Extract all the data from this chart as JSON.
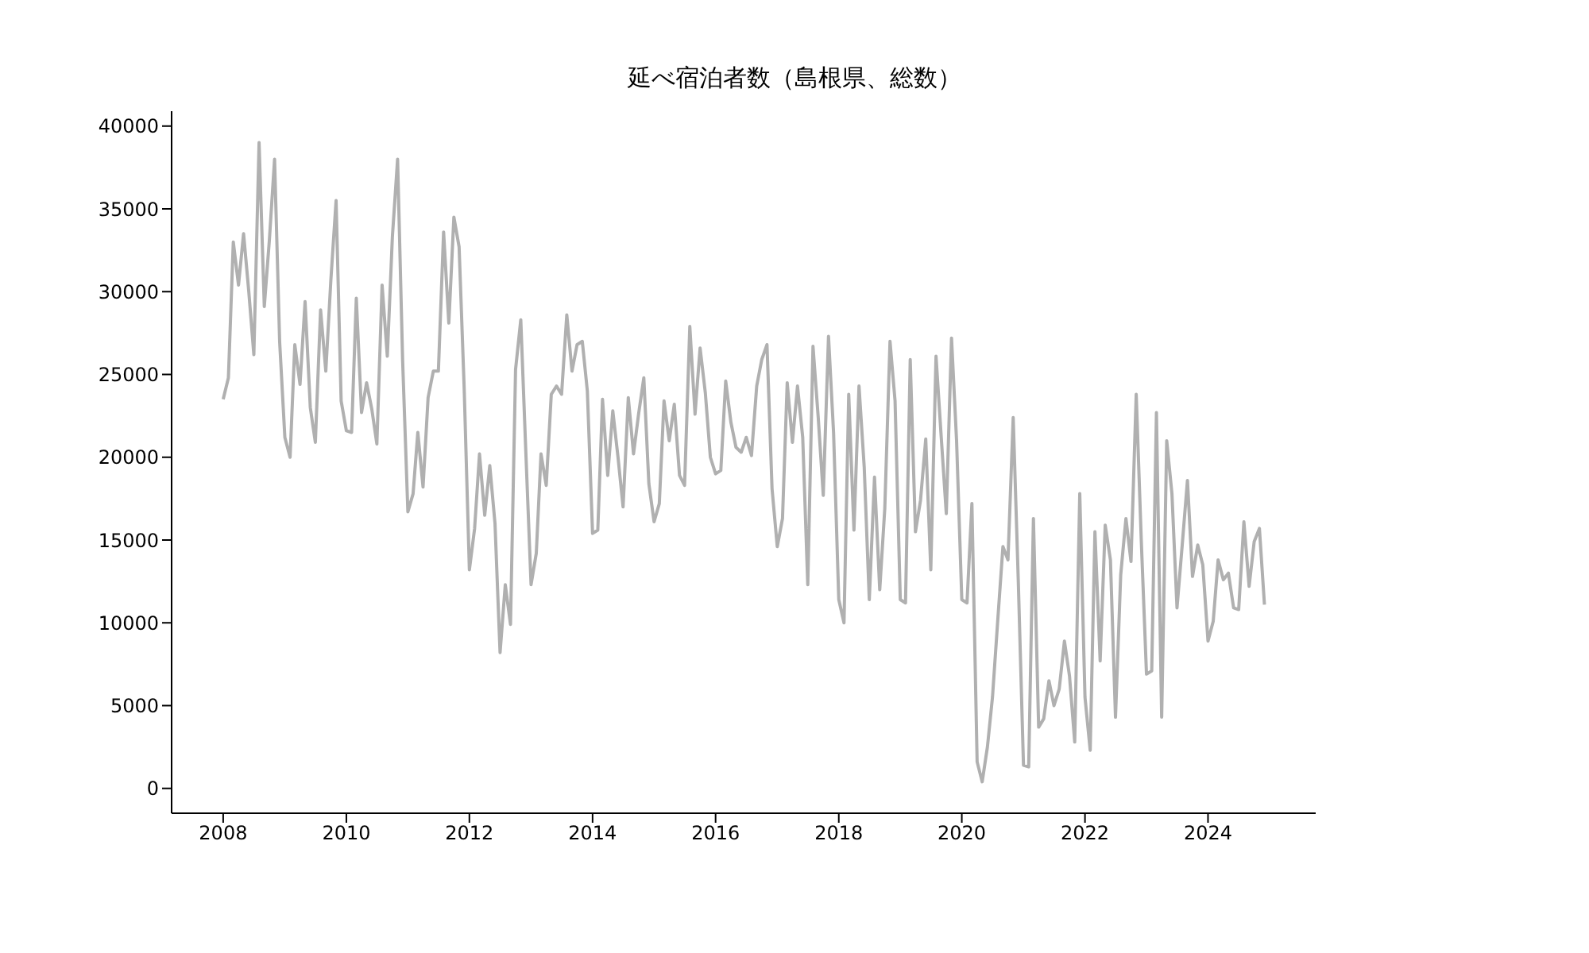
{
  "chart_data": {
    "type": "line",
    "title": "延べ宿泊者数（島根県、総数）",
    "x": [
      "2008-01",
      "2008-02",
      "2008-03",
      "2008-04",
      "2008-05",
      "2008-06",
      "2008-07",
      "2008-08",
      "2008-09",
      "2008-10",
      "2008-11",
      "2008-12",
      "2009-01",
      "2009-02",
      "2009-03",
      "2009-04",
      "2009-05",
      "2009-06",
      "2009-07",
      "2009-08",
      "2009-09",
      "2009-10",
      "2009-11",
      "2009-12",
      "2010-01",
      "2010-02",
      "2010-03",
      "2010-04",
      "2010-05",
      "2010-06",
      "2010-07",
      "2010-08",
      "2010-09",
      "2010-10",
      "2010-11",
      "2010-12",
      "2011-01",
      "2011-02",
      "2011-03",
      "2011-04",
      "2011-05",
      "2011-06",
      "2011-07",
      "2011-08",
      "2011-09",
      "2011-10",
      "2011-11",
      "2011-12",
      "2012-01",
      "2012-02",
      "2012-03",
      "2012-04",
      "2012-05",
      "2012-06",
      "2012-07",
      "2012-08",
      "2012-09",
      "2012-10",
      "2012-11",
      "2012-12",
      "2013-01",
      "2013-02",
      "2013-03",
      "2013-04",
      "2013-05",
      "2013-06",
      "2013-07",
      "2013-08",
      "2013-09",
      "2013-10",
      "2013-11",
      "2013-12",
      "2014-01",
      "2014-02",
      "2014-03",
      "2014-04",
      "2014-05",
      "2014-06",
      "2014-07",
      "2014-08",
      "2014-09",
      "2014-10",
      "2014-11",
      "2014-12",
      "2015-01",
      "2015-02",
      "2015-03",
      "2015-04",
      "2015-05",
      "2015-06",
      "2015-07",
      "2015-08",
      "2015-09",
      "2015-10",
      "2015-11",
      "2015-12",
      "2016-01",
      "2016-02",
      "2016-03",
      "2016-04",
      "2016-05",
      "2016-06",
      "2016-07",
      "2016-08",
      "2016-09",
      "2016-10",
      "2016-11",
      "2016-12",
      "2017-01",
      "2017-02",
      "2017-03",
      "2017-04",
      "2017-05",
      "2017-06",
      "2017-07",
      "2017-08",
      "2017-09",
      "2017-10",
      "2017-11",
      "2017-12",
      "2018-01",
      "2018-02",
      "2018-03",
      "2018-04",
      "2018-05",
      "2018-06",
      "2018-07",
      "2018-08",
      "2018-09",
      "2018-10",
      "2018-11",
      "2018-12",
      "2019-01",
      "2019-02",
      "2019-03",
      "2019-04",
      "2019-05",
      "2019-06",
      "2019-07",
      "2019-08",
      "2019-09",
      "2019-10",
      "2019-11",
      "2019-12",
      "2020-01",
      "2020-02",
      "2020-03",
      "2020-04",
      "2020-05",
      "2020-06",
      "2020-07",
      "2020-08",
      "2020-09",
      "2020-10",
      "2020-11",
      "2020-12",
      "2021-01",
      "2021-02",
      "2021-03",
      "2021-04",
      "2021-05",
      "2021-06",
      "2021-07",
      "2021-08",
      "2021-09",
      "2021-10",
      "2021-11",
      "2021-12",
      "2022-01",
      "2022-02",
      "2022-03",
      "2022-04",
      "2022-05",
      "2022-06",
      "2022-07",
      "2022-08",
      "2022-09",
      "2022-10",
      "2022-11",
      "2022-12",
      "2023-01",
      "2023-02",
      "2023-03",
      "2023-04",
      "2023-05",
      "2023-06",
      "2023-07",
      "2023-08",
      "2023-09",
      "2023-10",
      "2023-11",
      "2023-12",
      "2024-01",
      "2024-02",
      "2024-03",
      "2024-04",
      "2024-05",
      "2024-06",
      "2024-07",
      "2024-08",
      "2024-09",
      "2024-10",
      "2024-11",
      "2024-12"
    ],
    "series": [
      {
        "color": "#b0b0b0",
        "values": [
          23500,
          24800,
          33000,
          30400,
          33500,
          30000,
          26200,
          39000,
          29100,
          33100,
          38000,
          27000,
          21200,
          20000,
          26800,
          24400,
          29400,
          23000,
          20900,
          28900,
          25200,
          30700,
          35500,
          23400,
          21600,
          21500,
          29600,
          22700,
          24500,
          22900,
          20800,
          30400,
          26100,
          33300,
          38000,
          25800,
          16700,
          17800,
          21500,
          18200,
          23600,
          25200,
          25200,
          33600,
          28100,
          34500,
          32700,
          24200,
          13200,
          15700,
          20200,
          16500,
          19500,
          16000,
          8200,
          12300,
          9900,
          25300,
          28300,
          20300,
          12300,
          14200,
          20200,
          18300,
          23800,
          24300,
          23800,
          28600,
          25200,
          26800,
          27000,
          24000,
          15400,
          15600,
          23500,
          18900,
          22800,
          20000,
          17000,
          23600,
          20200,
          22600,
          24800,
          18400,
          16100,
          17200,
          23400,
          21000,
          23200,
          18900,
          18300,
          27900,
          22600,
          26600,
          23900,
          20000,
          19000,
          19200,
          24600,
          22100,
          20600,
          20300,
          21200,
          20100,
          24300,
          25900,
          26800,
          18100,
          14600,
          16300,
          24500,
          20900,
          24300,
          21200,
          12300,
          26700,
          22400,
          17700,
          27300,
          21500,
          11400,
          10000,
          23800,
          15600,
          24300,
          19400,
          11400,
          18800,
          12000,
          16900,
          27000,
          23400,
          11400,
          11200,
          25900,
          15500,
          17400,
          21100,
          13200,
          26100,
          21200,
          16600,
          27200,
          21000,
          11400,
          11200,
          17200,
          1600,
          400,
          2500,
          5500,
          10100,
          14600,
          13800,
          22400,
          12600,
          1400,
          1300,
          16300,
          3700,
          4200,
          6500,
          5000,
          6000,
          8900,
          6800,
          2800,
          17800,
          5500,
          2300,
          15500,
          7700,
          15900,
          13800,
          4300,
          12900,
          16300,
          13700,
          23800,
          15000,
          6900,
          7100,
          22700,
          4300,
          21000,
          17800,
          10900,
          14700,
          18600,
          12800,
          14700,
          13500,
          8900,
          10100,
          13800,
          12600,
          13000,
          10900,
          10800,
          16100,
          12200,
          14900,
          15700,
          11100
        ]
      }
    ],
    "xlim": [
      "2007-03",
      "2025-10"
    ],
    "xticks": [
      "2008",
      "2010",
      "2012",
      "2014",
      "2016",
      "2018",
      "2020",
      "2022",
      "2024"
    ],
    "ylim": [
      -1500,
      40900
    ],
    "yticks": [
      0,
      5000,
      10000,
      15000,
      20000,
      25000,
      30000,
      35000,
      40000
    ],
    "grid": false,
    "legend": false,
    "marker": "none",
    "line_style": "solid"
  }
}
